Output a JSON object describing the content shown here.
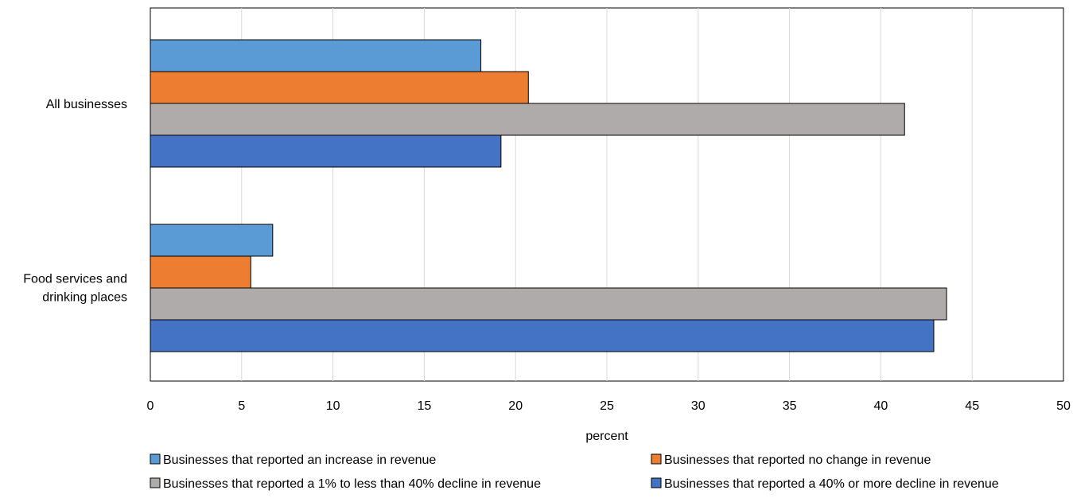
{
  "chart_data": {
    "type": "bar",
    "orientation": "horizontal",
    "title": "",
    "xlabel": "percent",
    "ylabel": "",
    "xlim": [
      0,
      50
    ],
    "xticks": [
      "0",
      "5",
      "10",
      "15",
      "20",
      "25",
      "30",
      "35",
      "40",
      "45",
      "50"
    ],
    "xtick_values": [
      0,
      5,
      10,
      15,
      20,
      25,
      30,
      35,
      40,
      45,
      50
    ],
    "grid": "vertical",
    "legend_position": "bottom",
    "categories": [
      [
        "All businesses"
      ],
      [
        "Food services and",
        "drinking places"
      ]
    ],
    "series": [
      {
        "name": "Businesses that reported an increase in revenue",
        "color": "#5b9bd5",
        "values": [
          18.1,
          6.7
        ]
      },
      {
        "name": "Businesses that reported no change in revenue",
        "color": "#ed7d31",
        "values": [
          20.7,
          5.5
        ]
      },
      {
        "name": "Businesses that reported a 1% to less than 40% decline in revenue",
        "color": "#afabab",
        "values": [
          41.3,
          43.6
        ]
      },
      {
        "name": "Businesses that reported a 40% or more decline in revenue",
        "color": "#4472c4",
        "values": [
          19.2,
          42.9
        ]
      }
    ]
  }
}
